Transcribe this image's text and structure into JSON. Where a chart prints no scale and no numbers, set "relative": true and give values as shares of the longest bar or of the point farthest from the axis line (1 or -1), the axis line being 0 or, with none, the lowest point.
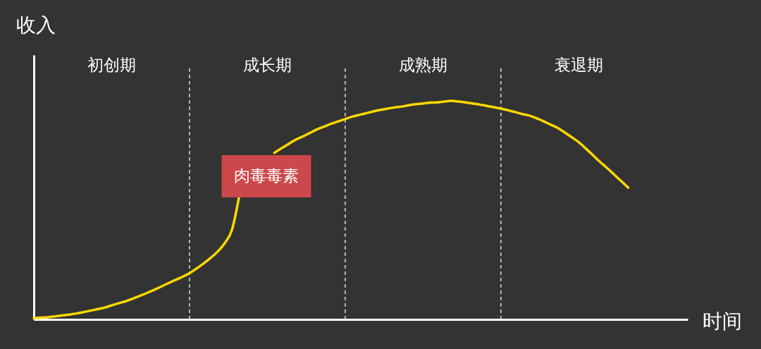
{
  "chart_data": {
    "type": "line",
    "relative": true,
    "xlabel": "时间",
    "ylabel": "收入",
    "tick_labels": "x",
    "grid": "x",
    "categories": [
      null,
      null,
      null,
      null,
      null,
      null,
      null,
      null,
      null,
      null,
      null,
      "初创期",
      null,
      null,
      null,
      null,
      null,
      null,
      null,
      null,
      null,
      null,
      null,
      null,
      null,
      null,
      null,
      null,
      null,
      null,
      null,
      null,
      null,
      "成长期",
      null,
      null,
      null,
      null,
      null,
      null,
      null,
      null,
      null,
      null,
      null,
      null,
      null,
      null,
      null,
      null,
      null,
      null,
      null,
      null,
      null,
      "成熟期",
      null,
      null,
      null,
      null,
      null,
      null,
      null,
      null,
      null,
      null,
      null,
      null,
      null,
      null,
      null,
      null,
      null,
      null,
      null,
      null,
      null,
      "衰退期",
      null,
      null,
      null,
      null,
      null,
      null,
      null
    ],
    "series": [
      {
        "color": "#ffd800",
        "values": [
          0.006,
          0.008,
          0.01,
          0.014,
          0.018,
          0.022,
          0.027,
          0.033,
          0.04,
          0.047,
          0.054,
          0.064,
          0.074,
          0.083,
          0.095,
          0.108,
          0.121,
          0.135,
          0.15,
          0.166,
          0.18,
          0.195,
          0.211,
          0.233,
          0.256,
          0.282,
          0.311,
          0.35,
          0.41,
          0.56,
          null,
          null,
          null,
          null,
          0.762,
          0.783,
          0.803,
          0.822,
          0.837,
          0.853,
          0.869,
          0.882,
          0.895,
          0.906,
          0.917,
          0.928,
          0.936,
          0.944,
          0.952,
          0.959,
          0.965,
          0.97,
          0.974,
          0.98,
          0.985,
          0.988,
          0.992,
          0.993,
          0.997,
          1,
          0.997,
          0.993,
          0.988,
          0.983,
          0.977,
          0.971,
          0.965,
          0.957,
          0.949,
          0.94,
          0.933,
          0.921,
          0.907,
          0.892,
          0.877,
          0.856,
          0.834,
          0.811,
          0.782,
          0.752,
          0.721,
          0.693,
          0.663,
          0.633,
          0.603
        ]
      }
    ],
    "annotations": [
      "肉毒毒素"
    ]
  }
}
